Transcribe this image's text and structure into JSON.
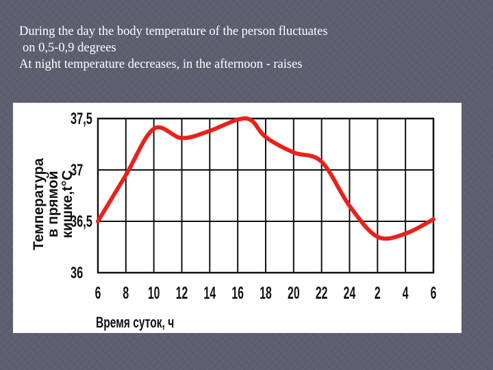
{
  "caption": {
    "line1": "During the day the body temperature of the person fluctuates",
    "line2": "on 0,5-0,9 degrees",
    "line3": "At night temperature decreases, in the afternoon - raises"
  },
  "colors": {
    "curve": "#e8211c",
    "grid": "#111111",
    "slide_background": "#5b5f70"
  },
  "chart_data": {
    "type": "line",
    "title": "",
    "ylabel_lines": [
      "Температура",
      "в прямой",
      "кишке,t°C"
    ],
    "xlabel": "Время суток, ч",
    "x_ticks": [
      "6",
      "8",
      "10",
      "12",
      "14",
      "16",
      "18",
      "20",
      "22",
      "24",
      "2",
      "4",
      "6"
    ],
    "y_ticks": [
      "37,5",
      "37",
      "36,5",
      "36"
    ],
    "ylim": [
      36,
      37.5
    ],
    "grid": true,
    "series": [
      {
        "points": [
          {
            "x": "6",
            "y": 36.5
          },
          {
            "x": "8",
            "y": 36.95
          },
          {
            "x": "10",
            "y": 37.4
          },
          {
            "x": "12",
            "y": 37.31
          },
          {
            "x": "14",
            "y": 37.38
          },
          {
            "x": "16",
            "y": 37.49
          },
          {
            "x": "17",
            "y": 37.48
          },
          {
            "x": "18",
            "y": 37.32
          },
          {
            "x": "20",
            "y": 37.17
          },
          {
            "x": "22",
            "y": 37.08
          },
          {
            "x": "24",
            "y": 36.65
          },
          {
            "x": "2",
            "y": 36.35
          },
          {
            "x": "4",
            "y": 36.38
          },
          {
            "x": "6",
            "y": 36.52
          }
        ]
      }
    ]
  }
}
